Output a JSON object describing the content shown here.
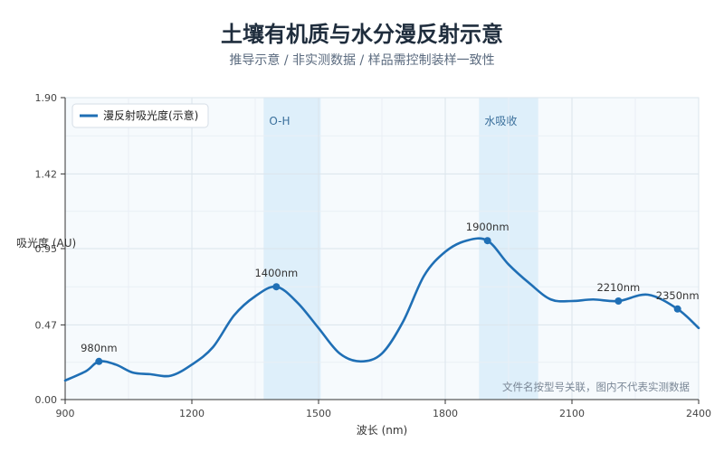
{
  "chart_data": {
    "type": "line",
    "title": "土壤有机质与水分漫反射示意",
    "subtitle": "推导示意 / 非实测数据 / 样品需控制装样一致性",
    "xlabel": "波长 (nm)",
    "ylabel": "吸光度 (AU)",
    "xlim": [
      900,
      2400
    ],
    "ylim": [
      0,
      1.9
    ],
    "xticks": [
      900,
      1200,
      1500,
      1800,
      2100,
      2400
    ],
    "yticks": [
      0.0,
      0.47,
      0.95,
      1.42,
      1.9
    ],
    "ytick_labels": [
      "0.00",
      "0.47",
      "0.95",
      "1.42",
      "1.90"
    ],
    "grid": true,
    "legend_position": "top-left",
    "series": [
      {
        "name": "漫反射吸光度(示意)",
        "color": "#1f6fb5",
        "x": [
          900,
          950,
          980,
          1020,
          1060,
          1100,
          1150,
          1200,
          1250,
          1300,
          1350,
          1400,
          1450,
          1500,
          1550,
          1600,
          1650,
          1700,
          1750,
          1800,
          1850,
          1900,
          1950,
          2000,
          2050,
          2100,
          2150,
          2210,
          2280,
          2350,
          2400
        ],
        "y": [
          0.12,
          0.18,
          0.24,
          0.22,
          0.17,
          0.16,
          0.15,
          0.22,
          0.33,
          0.53,
          0.65,
          0.71,
          0.61,
          0.45,
          0.29,
          0.24,
          0.29,
          0.49,
          0.78,
          0.93,
          1.0,
          1.0,
          0.85,
          0.73,
          0.63,
          0.62,
          0.63,
          0.62,
          0.66,
          0.57,
          0.45
        ]
      }
    ],
    "bands": [
      {
        "label": "O-H",
        "x0": 1370,
        "x1": 1505
      },
      {
        "label": "水吸收",
        "x0": 1880,
        "x1": 2020
      }
    ],
    "annotations": [
      {
        "label": "980nm",
        "x": 980,
        "y": 0.24
      },
      {
        "label": "1400nm",
        "x": 1400,
        "y": 0.71
      },
      {
        "label": "1900nm",
        "x": 1900,
        "y": 1.0
      },
      {
        "label": "2210nm",
        "x": 2210,
        "y": 0.62
      },
      {
        "label": "2350nm",
        "x": 2350,
        "y": 0.57
      }
    ],
    "note": "文件名按型号关联，图内不代表实测数据"
  }
}
